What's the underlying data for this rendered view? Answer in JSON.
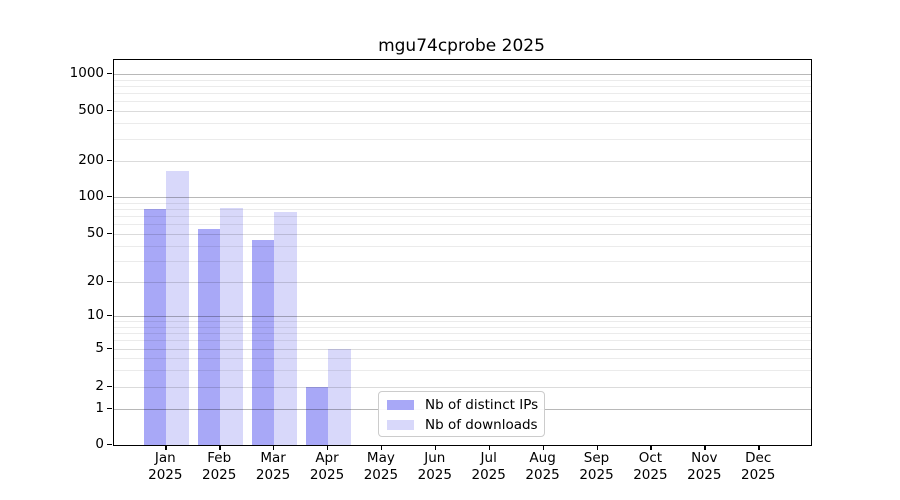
{
  "chart_data": {
    "type": "bar",
    "title": "mgu74cprobe 2025",
    "months": [
      "Jan",
      "Feb",
      "Mar",
      "Apr",
      "May",
      "Jun",
      "Jul",
      "Aug",
      "Sep",
      "Oct",
      "Nov",
      "Dec"
    ],
    "year": "2025",
    "series": [
      {
        "name": "Nb of distinct IPs",
        "color": "#a8a8f7",
        "values": [
          80,
          55,
          45,
          2,
          0,
          0,
          0,
          0,
          0,
          0,
          0,
          0
        ]
      },
      {
        "name": "Nb of downloads",
        "color": "#d8d8fa",
        "values": [
          165,
          82,
          75,
          5,
          0,
          0,
          0,
          0,
          0,
          0,
          0,
          0
        ]
      }
    ],
    "yscale": "symlog",
    "ylim": [
      0,
      1300
    ],
    "yticks": [
      0,
      1,
      2,
      5,
      10,
      20,
      50,
      100,
      200,
      500,
      1000
    ],
    "minor_yticks": [
      3,
      4,
      6,
      7,
      8,
      9,
      30,
      40,
      60,
      70,
      80,
      90,
      300,
      400,
      600,
      700,
      800,
      900
    ],
    "grid": {
      "horizontal": true,
      "vertical": false
    },
    "legend_position": "lower center",
    "colors": {
      "grid_major": "rgba(0,0,0,0.28)",
      "grid_mid": "rgba(0,0,0,0.14)",
      "grid_minor": "rgba(0,0,0,0.08)",
      "axis": "#000000",
      "background": "#ffffff"
    }
  }
}
